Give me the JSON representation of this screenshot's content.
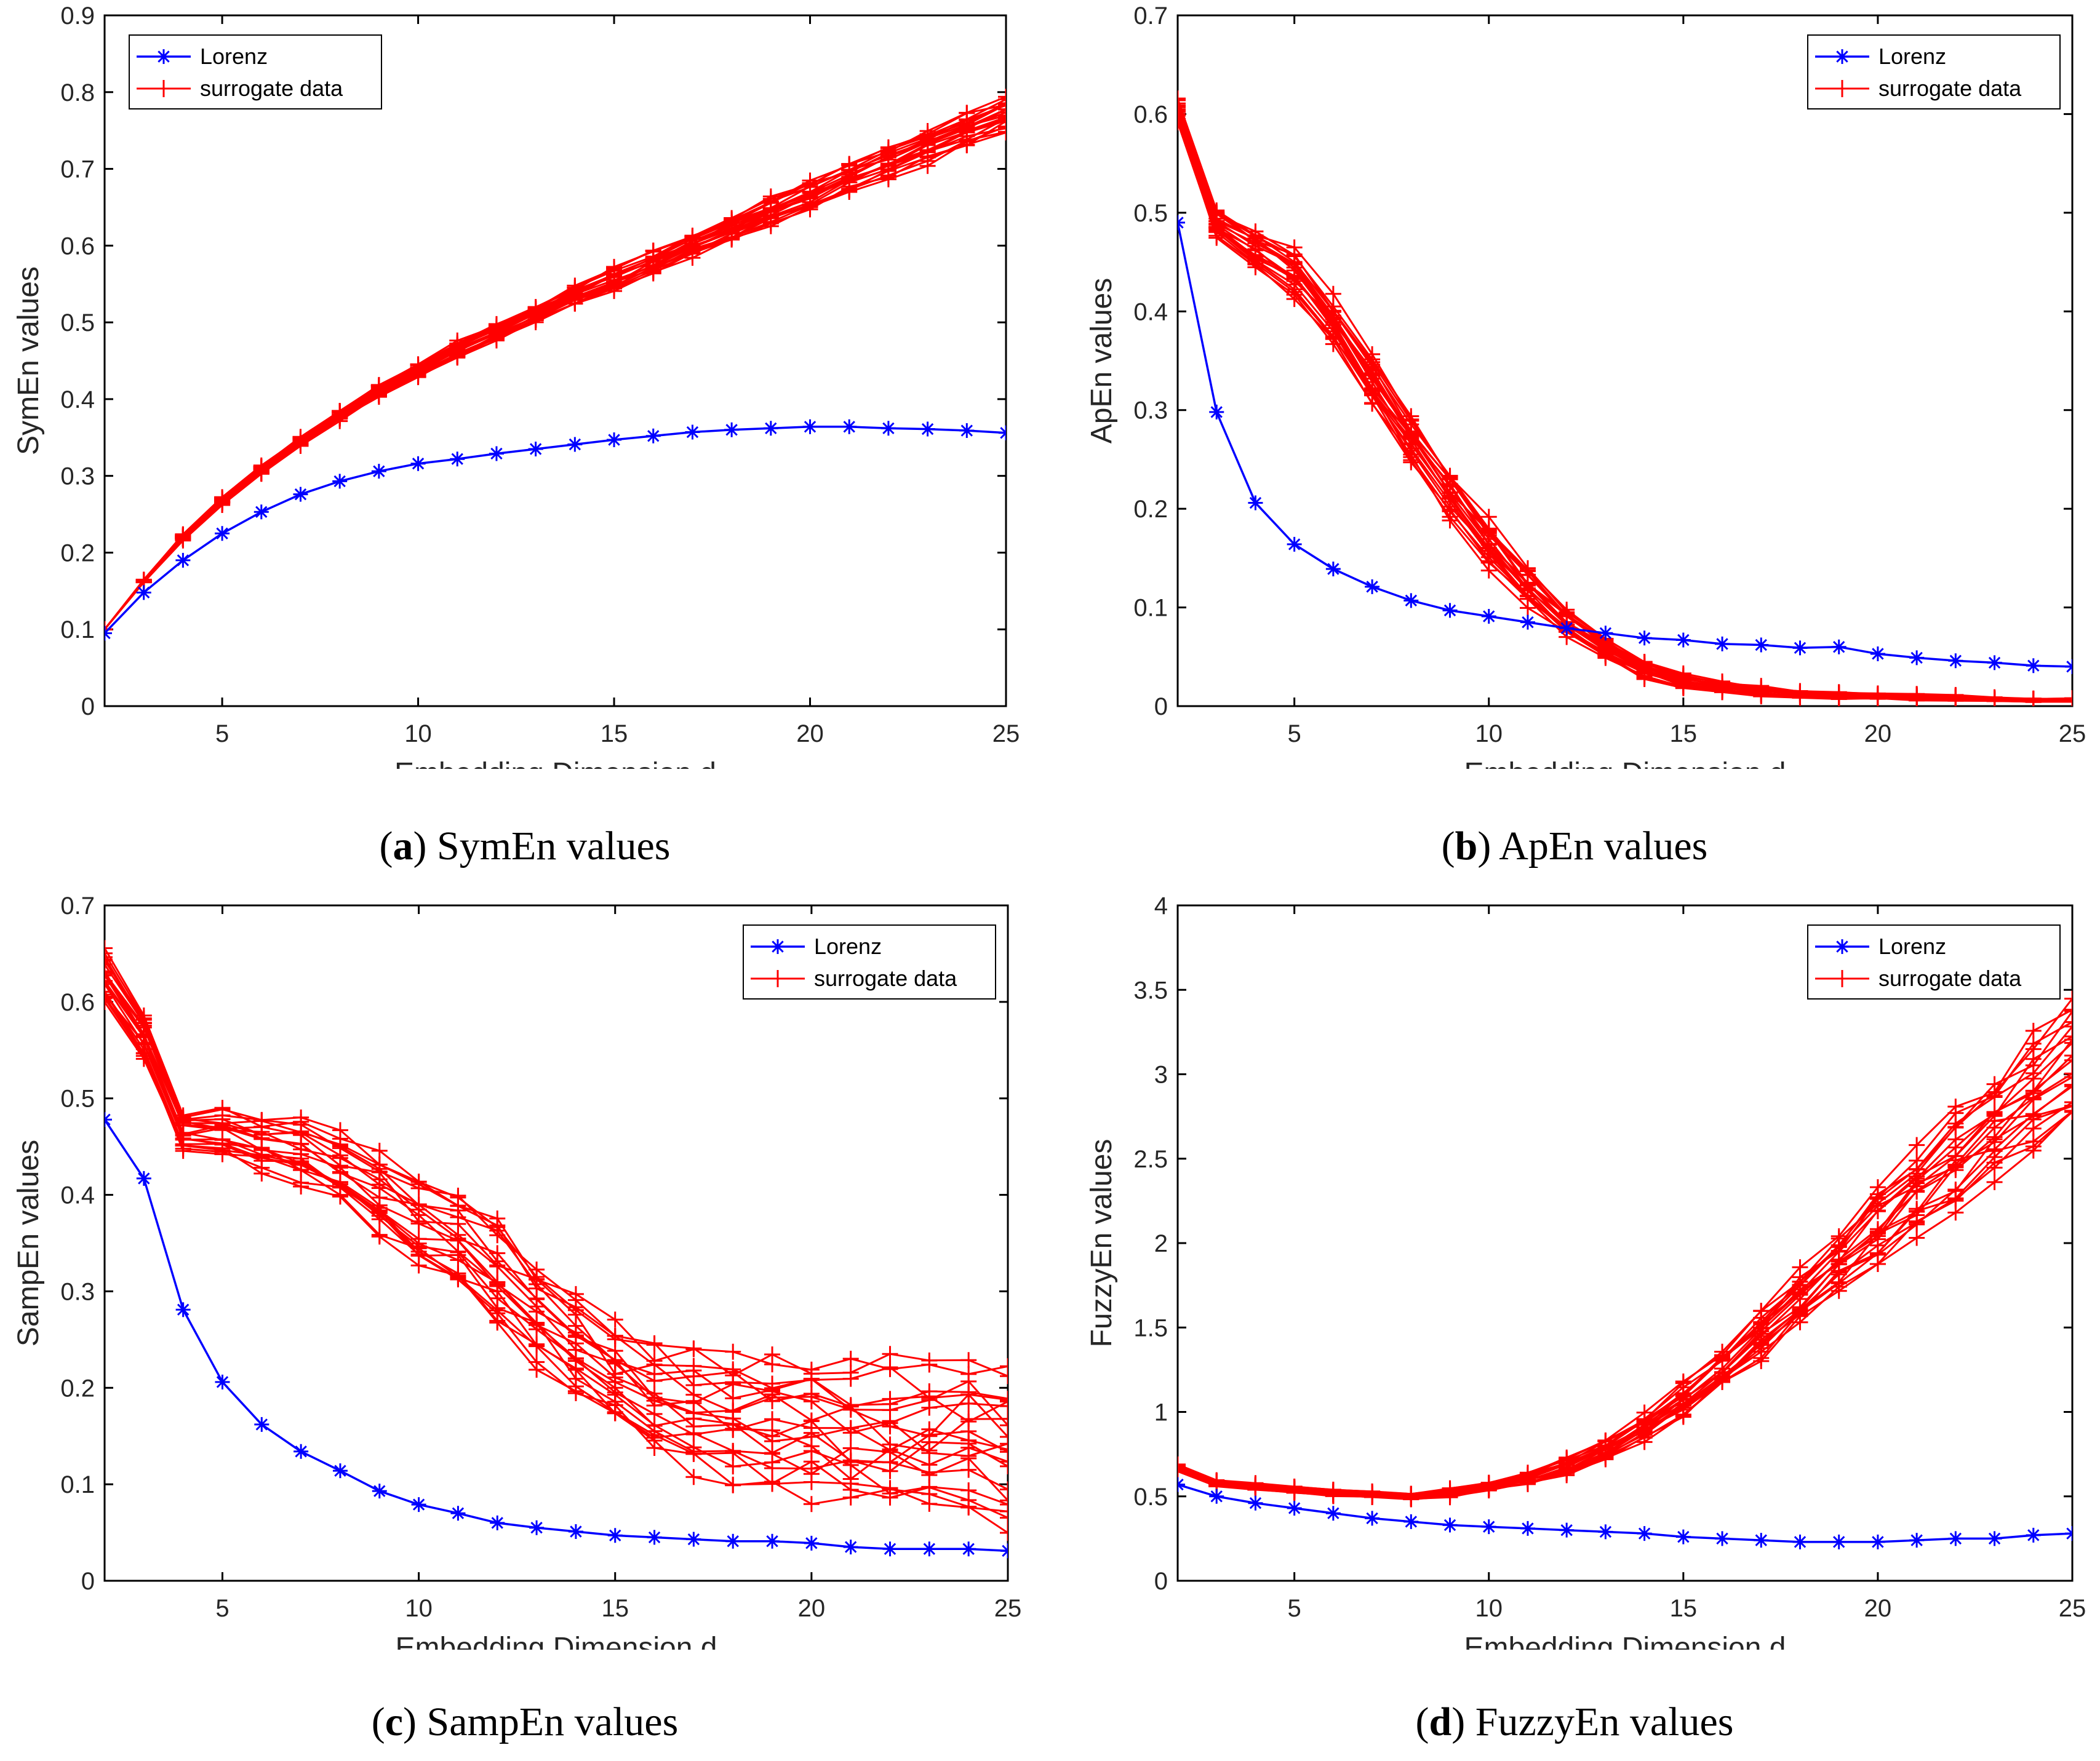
{
  "chart_data": [
    {
      "type": "line",
      "caption_letter": "a",
      "caption_text": "SymEn values",
      "ylabel": "SymEn values",
      "xlabel": "Embedding Dimension d",
      "xlim": [
        2,
        25
      ],
      "ylim": [
        0,
        0.9
      ],
      "xticks": [
        5,
        10,
        15,
        20,
        25
      ],
      "yticks": [
        0,
        0.1,
        0.2,
        0.3,
        0.4,
        0.5,
        0.6,
        0.7,
        0.8,
        0.9
      ],
      "legend_position": "top-left",
      "legend": [
        "Lorenz",
        "surrogate data"
      ],
      "x": [
        2,
        3,
        4,
        5,
        6,
        7,
        8,
        9,
        10,
        11,
        12,
        13,
        14,
        15,
        16,
        17,
        18,
        19,
        20,
        21,
        22,
        23,
        24,
        25
      ],
      "series": [
        {
          "name": "Lorenz",
          "values": [
            0.095,
            0.148,
            0.19,
            0.225,
            0.253,
            0.276,
            0.293,
            0.306,
            0.316,
            0.322,
            0.329,
            0.335,
            0.341,
            0.347,
            0.352,
            0.357,
            0.36,
            0.362,
            0.364,
            0.364,
            0.362,
            0.361,
            0.359,
            0.356
          ]
        },
        {
          "name": "surrogate data",
          "values": [
            0.1,
            0.163,
            0.22,
            0.267,
            0.308,
            0.345,
            0.38,
            0.411,
            0.438,
            0.464,
            0.488,
            0.512,
            0.535,
            0.557,
            0.579,
            0.601,
            0.623,
            0.645,
            0.667,
            0.688,
            0.709,
            0.729,
            0.75,
            0.77
          ]
        }
      ],
      "surrogate_spread": [
        0,
        0.002,
        0.004,
        0.005,
        0.006,
        0.007,
        0.008,
        0.009,
        0.01,
        0.011,
        0.012,
        0.013,
        0.014,
        0.015,
        0.016,
        0.017,
        0.018,
        0.019,
        0.02,
        0.021,
        0.022,
        0.023,
        0.024,
        0.025
      ]
    },
    {
      "type": "line",
      "caption_letter": "b",
      "caption_text": "ApEn values",
      "ylabel": "ApEn values",
      "xlabel": "Embedding Dimension d",
      "xlim": [
        2,
        25
      ],
      "ylim": [
        0,
        0.7
      ],
      "xticks": [
        5,
        10,
        15,
        20,
        25
      ],
      "yticks": [
        0,
        0.1,
        0.2,
        0.3,
        0.4,
        0.5,
        0.6,
        0.7
      ],
      "legend_position": "top-right",
      "legend": [
        "Lorenz",
        "surrogate data"
      ],
      "x": [
        2,
        3,
        4,
        5,
        6,
        7,
        8,
        9,
        10,
        11,
        12,
        13,
        14,
        15,
        16,
        17,
        18,
        19,
        20,
        21,
        22,
        23,
        24,
        25
      ],
      "series": [
        {
          "name": "Lorenz",
          "values": [
            0.49,
            0.298,
            0.206,
            0.164,
            0.139,
            0.121,
            0.107,
            0.097,
            0.091,
            0.085,
            0.079,
            0.074,
            0.069,
            0.067,
            0.063,
            0.062,
            0.059,
            0.06,
            0.053,
            0.049,
            0.046,
            0.044,
            0.041,
            0.04
          ]
        },
        {
          "name": "surrogate data",
          "values": [
            0.605,
            0.49,
            0.465,
            0.44,
            0.39,
            0.33,
            0.27,
            0.215,
            0.165,
            0.12,
            0.085,
            0.058,
            0.038,
            0.025,
            0.019,
            0.015,
            0.012,
            0.011,
            0.01,
            0.009,
            0.008,
            0.007,
            0.006,
            0.006
          ]
        }
      ],
      "surrogate_spread": [
        0.012,
        0.015,
        0.02,
        0.025,
        0.025,
        0.025,
        0.025,
        0.025,
        0.025,
        0.02,
        0.015,
        0.012,
        0.01,
        0.008,
        0.006,
        0.005,
        0.004,
        0.004,
        0.003,
        0.003,
        0.003,
        0.002,
        0.002,
        0.002
      ]
    },
    {
      "type": "line",
      "caption_letter": "c",
      "caption_text": "SampEn values",
      "ylabel": "SampEn values",
      "xlabel": "Embedding Dimension d",
      "xlim": [
        2,
        25
      ],
      "ylim": [
        0,
        0.7
      ],
      "xticks": [
        5,
        10,
        15,
        20,
        25
      ],
      "yticks": [
        0,
        0.1,
        0.2,
        0.3,
        0.4,
        0.5,
        0.6,
        0.7
      ],
      "legend_position": "top-right",
      "legend": [
        "Lorenz",
        "surrogate data"
      ],
      "x": [
        2,
        3,
        4,
        5,
        6,
        7,
        8,
        9,
        10,
        11,
        12,
        13,
        14,
        15,
        16,
        17,
        18,
        19,
        20,
        21,
        22,
        23,
        24,
        25
      ],
      "series": [
        {
          "name": "Lorenz",
          "values": [
            0.478,
            0.417,
            0.281,
            0.206,
            0.162,
            0.134,
            0.114,
            0.093,
            0.079,
            0.07,
            0.06,
            0.055,
            0.051,
            0.047,
            0.045,
            0.043,
            0.041,
            0.041,
            0.039,
            0.035,
            0.033,
            0.033,
            0.033,
            0.031
          ]
        },
        {
          "name": "surrogate data",
          "values": [
            0.625,
            0.565,
            0.465,
            0.465,
            0.455,
            0.445,
            0.425,
            0.4,
            0.37,
            0.35,
            0.32,
            0.28,
            0.245,
            0.21,
            0.19,
            0.175,
            0.17,
            0.165,
            0.16,
            0.15,
            0.15,
            0.145,
            0.145,
            0.14
          ]
        }
      ],
      "surrogate_spread": [
        0.03,
        0.025,
        0.02,
        0.025,
        0.03,
        0.035,
        0.04,
        0.045,
        0.05,
        0.055,
        0.06,
        0.06,
        0.06,
        0.06,
        0.06,
        0.065,
        0.07,
        0.07,
        0.075,
        0.08,
        0.08,
        0.08,
        0.085,
        0.09
      ]
    },
    {
      "type": "line",
      "caption_letter": "d",
      "caption_text": "FuzzyEn values",
      "ylabel": "FuzzyEn values",
      "xlabel": "Embedding Dimension d",
      "xlim": [
        2,
        25
      ],
      "ylim": [
        0,
        4
      ],
      "xticks": [
        5,
        10,
        15,
        20,
        25
      ],
      "yticks": [
        0,
        0.5,
        1,
        1.5,
        2,
        2.5,
        3,
        3.5,
        4
      ],
      "legend_position": "top-right",
      "legend": [
        "Lorenz",
        "surrogate data"
      ],
      "x": [
        2,
        3,
        4,
        5,
        6,
        7,
        8,
        9,
        10,
        11,
        12,
        13,
        14,
        15,
        16,
        17,
        18,
        19,
        20,
        21,
        22,
        23,
        24,
        25
      ],
      "series": [
        {
          "name": "Lorenz",
          "values": [
            0.57,
            0.5,
            0.46,
            0.43,
            0.4,
            0.37,
            0.35,
            0.33,
            0.32,
            0.31,
            0.3,
            0.29,
            0.28,
            0.26,
            0.25,
            0.24,
            0.23,
            0.23,
            0.23,
            0.24,
            0.25,
            0.25,
            0.27,
            0.28
          ]
        },
        {
          "name": "surrogate data",
          "values": [
            0.67,
            0.58,
            0.56,
            0.54,
            0.52,
            0.51,
            0.5,
            0.52,
            0.56,
            0.61,
            0.68,
            0.78,
            0.91,
            1.07,
            1.26,
            1.46,
            1.67,
            1.88,
            2.09,
            2.3,
            2.5,
            2.7,
            2.88,
            3.05
          ]
        }
      ],
      "surrogate_spread": [
        0.02,
        0.02,
        0.02,
        0.02,
        0.02,
        0.02,
        0.02,
        0.03,
        0.03,
        0.04,
        0.05,
        0.06,
        0.08,
        0.1,
        0.12,
        0.15,
        0.17,
        0.2,
        0.23,
        0.26,
        0.3,
        0.33,
        0.37,
        0.4
      ]
    }
  ]
}
